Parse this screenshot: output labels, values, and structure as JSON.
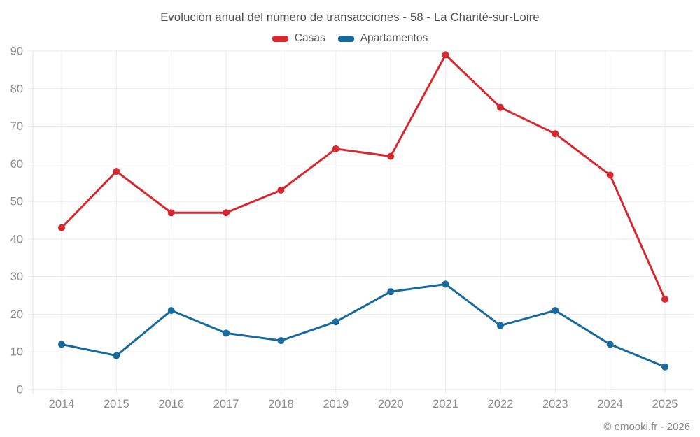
{
  "title": "Evolución anual del número de transacciones - 58 - La Charité-sur-Loire",
  "legend": {
    "items": [
      {
        "label": "Casas",
        "color": "#d9272e"
      },
      {
        "label": "Apartamentos",
        "color": "#176a9e"
      }
    ]
  },
  "footer": {
    "credit": "© emooki.fr - 2026"
  },
  "chart_data": {
    "type": "line",
    "title": "Evolución anual del número de transacciones - 58 - La Charité-sur-Loire",
    "categories": [
      "2014",
      "2015",
      "2016",
      "2017",
      "2018",
      "2019",
      "2020",
      "2021",
      "2022",
      "2023",
      "2024",
      "2025"
    ],
    "series": [
      {
        "name": "Casas",
        "color": "#d9272e",
        "values": [
          43,
          58,
          47,
          47,
          53,
          64,
          62,
          89,
          75,
          68,
          57,
          24
        ]
      },
      {
        "name": "Apartamentos",
        "color": "#176a9e",
        "values": [
          12,
          9,
          21,
          15,
          13,
          18,
          26,
          28,
          17,
          21,
          12,
          6
        ]
      }
    ],
    "xlabel": "",
    "ylabel": "",
    "ylim": [
      0,
      90
    ],
    "ytick_step": 10,
    "grid": true,
    "legend_position": "top",
    "grid_color": "#ebebeb",
    "axis_line_color": "#e0e0e0",
    "tick_label_color": "#8e8e8e",
    "marker_radius": 5,
    "line_width": 3
  }
}
